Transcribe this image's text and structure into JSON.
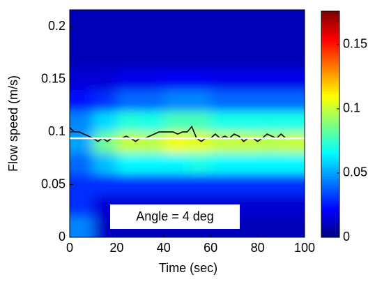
{
  "chart_data": {
    "type": "heatmap",
    "xlabel": "Time (sec)",
    "ylabel": "Flow speed (m/s)",
    "xlim": [
      0,
      100
    ],
    "ylim": [
      0,
      0.216
    ],
    "xticks": [
      0,
      20,
      40,
      60,
      80,
      100
    ],
    "yticks": [
      0,
      0.05,
      0.1,
      0.15,
      0.2
    ],
    "x_bins": [
      0,
      10,
      20,
      30,
      40,
      50,
      60,
      70,
      80,
      90,
      100
    ],
    "y_bins": [
      0,
      0.02,
      0.04,
      0.06,
      0.08,
      0.1,
      0.12,
      0.14,
      0.16,
      0.18,
      0.2,
      0.22
    ],
    "z": [
      [
        0.045,
        0.012,
        0.01,
        0.01,
        0.01,
        0.01,
        0.01,
        0.01,
        0.01,
        0.01
      ],
      [
        0.03,
        0.015,
        0.014,
        0.014,
        0.014,
        0.014,
        0.014,
        0.014,
        0.014,
        0.014
      ],
      [
        0.03,
        0.03,
        0.03,
        0.03,
        0.03,
        0.03,
        0.03,
        0.03,
        0.03,
        0.03
      ],
      [
        0.04,
        0.055,
        0.065,
        0.065,
        0.065,
        0.07,
        0.065,
        0.065,
        0.065,
        0.065
      ],
      [
        0.05,
        0.085,
        0.1,
        0.098,
        0.108,
        0.105,
        0.1,
        0.1,
        0.098,
        0.1
      ],
      [
        0.045,
        0.06,
        0.072,
        0.07,
        0.078,
        0.078,
        0.07,
        0.07,
        0.07,
        0.07
      ],
      [
        0.025,
        0.03,
        0.04,
        0.04,
        0.045,
        0.045,
        0.04,
        0.04,
        0.04,
        0.04
      ],
      [
        0.015,
        0.015,
        0.018,
        0.018,
        0.02,
        0.02,
        0.018,
        0.018,
        0.018,
        0.018
      ],
      [
        0.01,
        0.01,
        0.01,
        0.01,
        0.01,
        0.01,
        0.01,
        0.01,
        0.01,
        0.01
      ],
      [
        0.01,
        0.01,
        0.01,
        0.01,
        0.01,
        0.01,
        0.01,
        0.01,
        0.01,
        0.01
      ],
      [
        0.01,
        0.01,
        0.01,
        0.01,
        0.01,
        0.01,
        0.01,
        0.01,
        0.01,
        0.01
      ]
    ],
    "colormap": "jet",
    "clim": [
      0,
      0.176
    ],
    "cticks": [
      0,
      0.05,
      0.1,
      0.15
    ],
    "lines": [
      {
        "color": "#000000",
        "x": [
          0,
          2,
          4,
          6,
          8,
          10,
          12,
          14,
          16,
          18,
          20,
          22,
          24,
          26,
          28,
          30,
          32,
          34,
          36,
          38,
          40,
          42,
          44,
          46,
          48,
          50,
          52,
          54,
          56,
          58,
          60,
          62,
          64,
          66,
          68,
          70,
          72,
          74,
          76,
          78,
          80,
          82,
          84,
          86,
          88,
          90,
          92,
          94,
          96,
          98,
          100
        ],
        "values": [
          0.104,
          0.1,
          0.1,
          0.098,
          0.096,
          0.094,
          0.091,
          0.094,
          0.091,
          0.094,
          0.094,
          0.094,
          0.096,
          0.094,
          0.091,
          0.094,
          0.094,
          0.096,
          0.098,
          0.1,
          0.1,
          0.1,
          0.1,
          0.098,
          0.1,
          0.1,
          0.105,
          0.094,
          0.091,
          0.094,
          0.094,
          0.098,
          0.094,
          0.096,
          0.094,
          0.098,
          0.096,
          0.091,
          0.094,
          0.094,
          0.091,
          0.094,
          0.098,
          0.096,
          0.094,
          0.098,
          0.094,
          0.094,
          0.094,
          0.094,
          0.094
        ]
      },
      {
        "color": "#ffffff",
        "x": [
          0,
          100
        ],
        "values": [
          0.094,
          0.094
        ]
      }
    ],
    "annotation": "Angle = 4 deg"
  }
}
